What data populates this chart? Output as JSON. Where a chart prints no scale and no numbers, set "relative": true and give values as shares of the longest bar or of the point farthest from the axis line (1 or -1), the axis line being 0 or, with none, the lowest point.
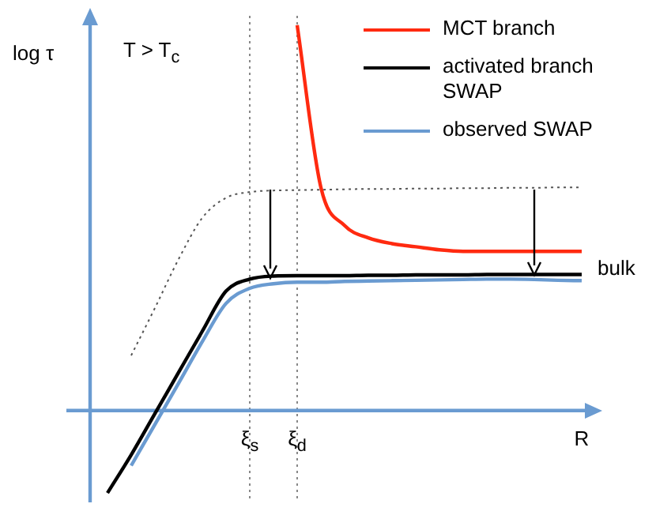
{
  "chart_data": {
    "type": "line",
    "relative": true,
    "ylabel": "log τ",
    "annotations": [
      "T > T$_{c}$",
      "bulk"
    ],
    "categories": [
      null,
      null,
      null,
      null,
      null,
      null,
      "ξ$_{s}$",
      null,
      "ξ$_{d}$",
      null,
      null,
      null,
      null,
      null,
      null,
      null,
      null,
      null,
      null,
      null,
      "R"
    ],
    "legend": "top right",
    "marker": "none",
    "ref_lines": [
      {
        "axis": "x",
        "value": "ξ$_{s}$",
        "line_style": "dotted",
        "color": "#888888"
      },
      {
        "axis": "x",
        "value": "ξ$_{d}$",
        "line_style": "dotted",
        "color": "#888888"
      }
    ],
    "series": [
      {
        "name": "MCT branch",
        "color": "#ff2a10",
        "values": [
          null,
          null,
          null,
          null,
          null,
          null,
          null,
          null,
          1,
          0.579,
          0.48,
          0.448,
          0.433,
          0.425,
          0.417,
          0.413,
          0.413,
          0.413,
          0.413,
          0.413,
          0.413
        ]
      },
      {
        "name": "activated branch SWAP",
        "color": "#000000",
        "values": [
          -0.214,
          -0.115,
          -0.008,
          0.099,
          0.206,
          0.31,
          0.341,
          0.349,
          0.35,
          0.35,
          0.35,
          0.351,
          0.351,
          0.352,
          0.352,
          0.352,
          0.353,
          0.353,
          0.353,
          0.353,
          0.353
        ]
      },
      {
        "name": "observed SWAP",
        "color": "#6a9bd1",
        "values": [
          null,
          -0.143,
          -0.036,
          0.071,
          0.179,
          0.278,
          0.317,
          0.329,
          0.333,
          0.333,
          0.335,
          0.336,
          0.337,
          0.338,
          0.339,
          0.34,
          0.341,
          0.341,
          0.34,
          0.338,
          0.337
        ]
      },
      {
        "color": "#555555",
        "line_style": "dotted",
        "values": [
          null,
          0.143,
          0.266,
          0.393,
          0.5,
          0.552,
          0.567,
          0.571,
          0.572,
          0.573,
          0.574,
          0.575,
          0.575,
          0.576,
          0.576,
          0.577,
          0.577,
          0.578,
          0.578,
          0.579,
          0.579
        ]
      }
    ]
  }
}
